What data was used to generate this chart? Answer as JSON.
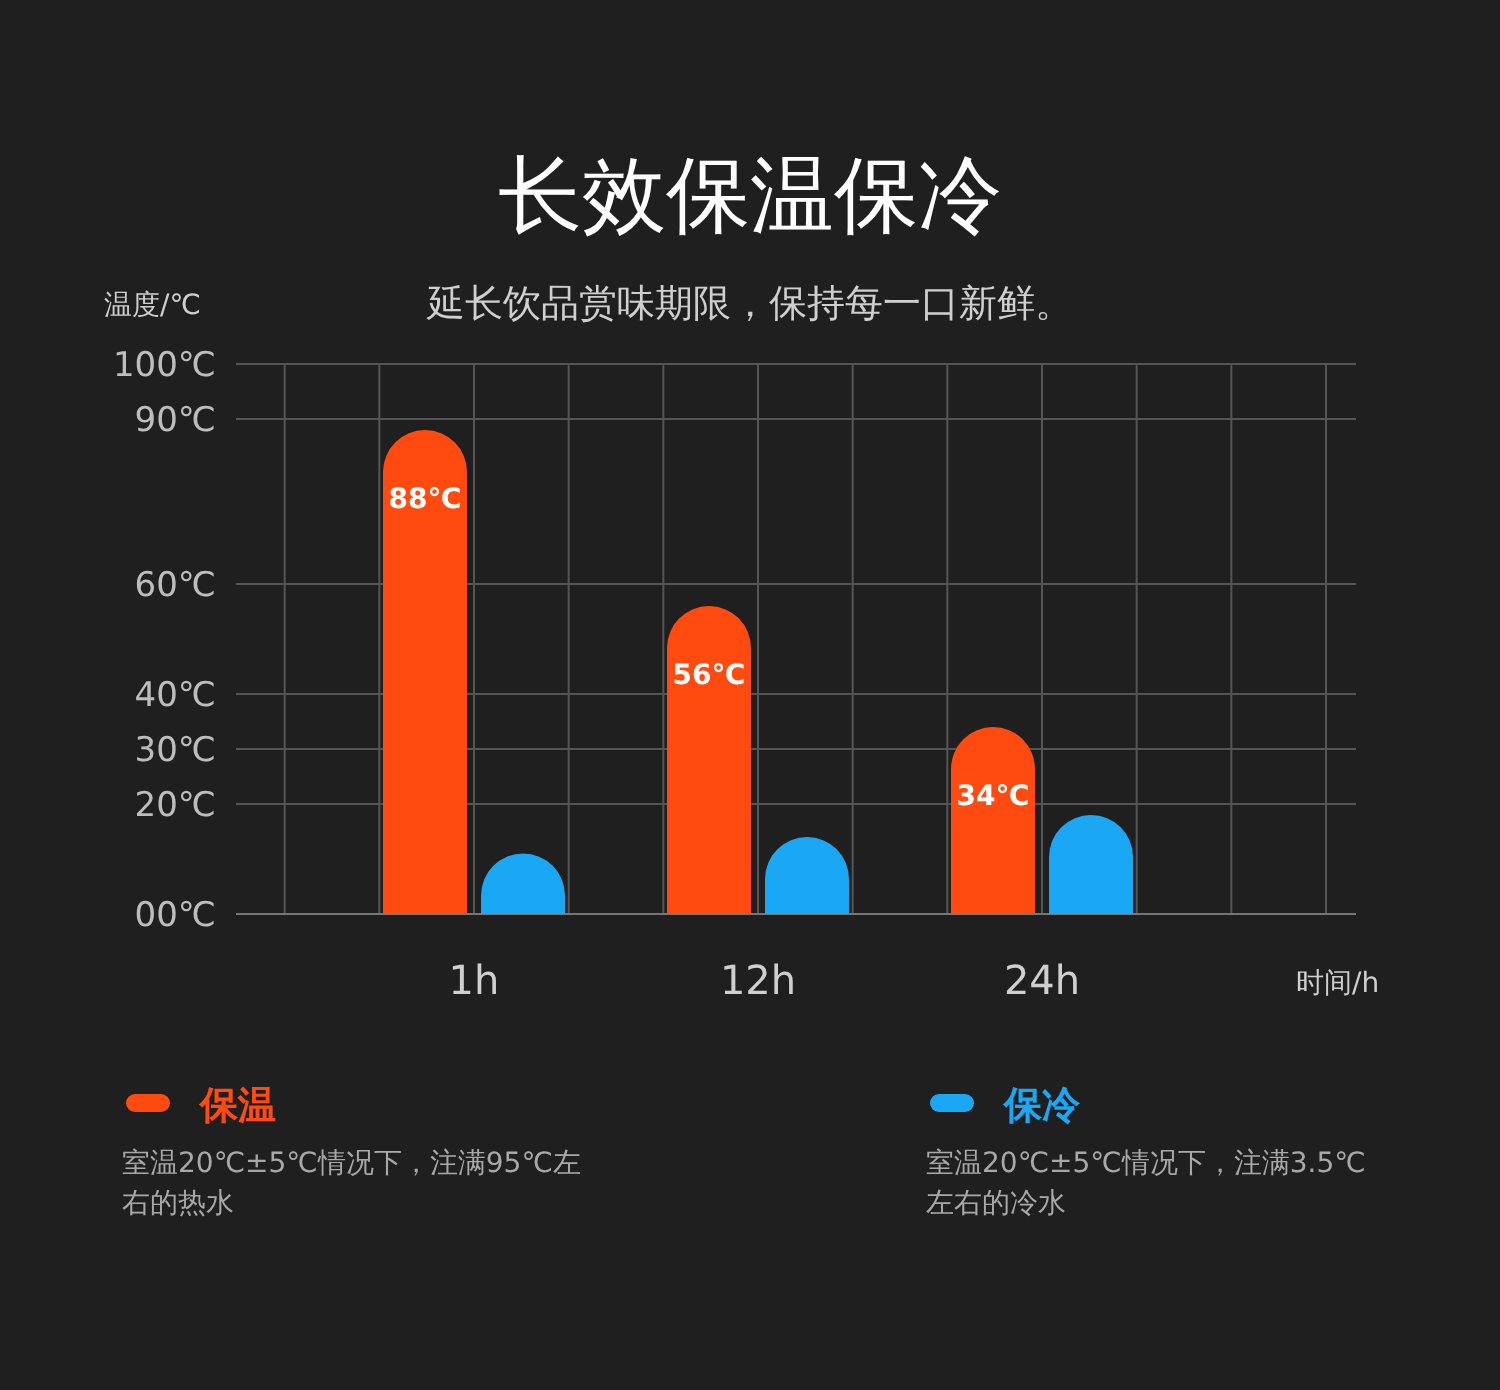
{
  "chart_data": {
    "type": "bar",
    "title": "长效保温保冷",
    "subtitle": "延长饮品赏味期限，保持每一口新鲜。",
    "ylabel": "温度/℃",
    "xlabel": "时间/h",
    "categories": [
      "1h",
      "12h",
      "24h"
    ],
    "series": [
      {
        "name": "保温",
        "color": "#ff4a10",
        "values": [
          88,
          56,
          34
        ],
        "value_labels": [
          "88℃",
          "56℃",
          "34℃"
        ]
      },
      {
        "name": "保冷",
        "color": "#1aa8f5",
        "values": [
          11,
          14,
          18
        ]
      }
    ],
    "ylim": [
      0,
      100
    ],
    "yticks": [
      {
        "value": 0,
        "label": "00℃"
      },
      {
        "value": 20,
        "label": "20℃"
      },
      {
        "value": 30,
        "label": "30℃"
      },
      {
        "value": 40,
        "label": "40℃"
      },
      {
        "value": 60,
        "label": "60℃"
      },
      {
        "value": 90,
        "label": "90℃"
      },
      {
        "value": 100,
        "label": "100℃"
      }
    ],
    "grid": true,
    "legend": "bottom",
    "annotations": [
      "室温20℃±5℃情况下，注满95℃左右的热水",
      "室温20℃±5℃情况下，注满3.5℃左右的冷水"
    ]
  }
}
